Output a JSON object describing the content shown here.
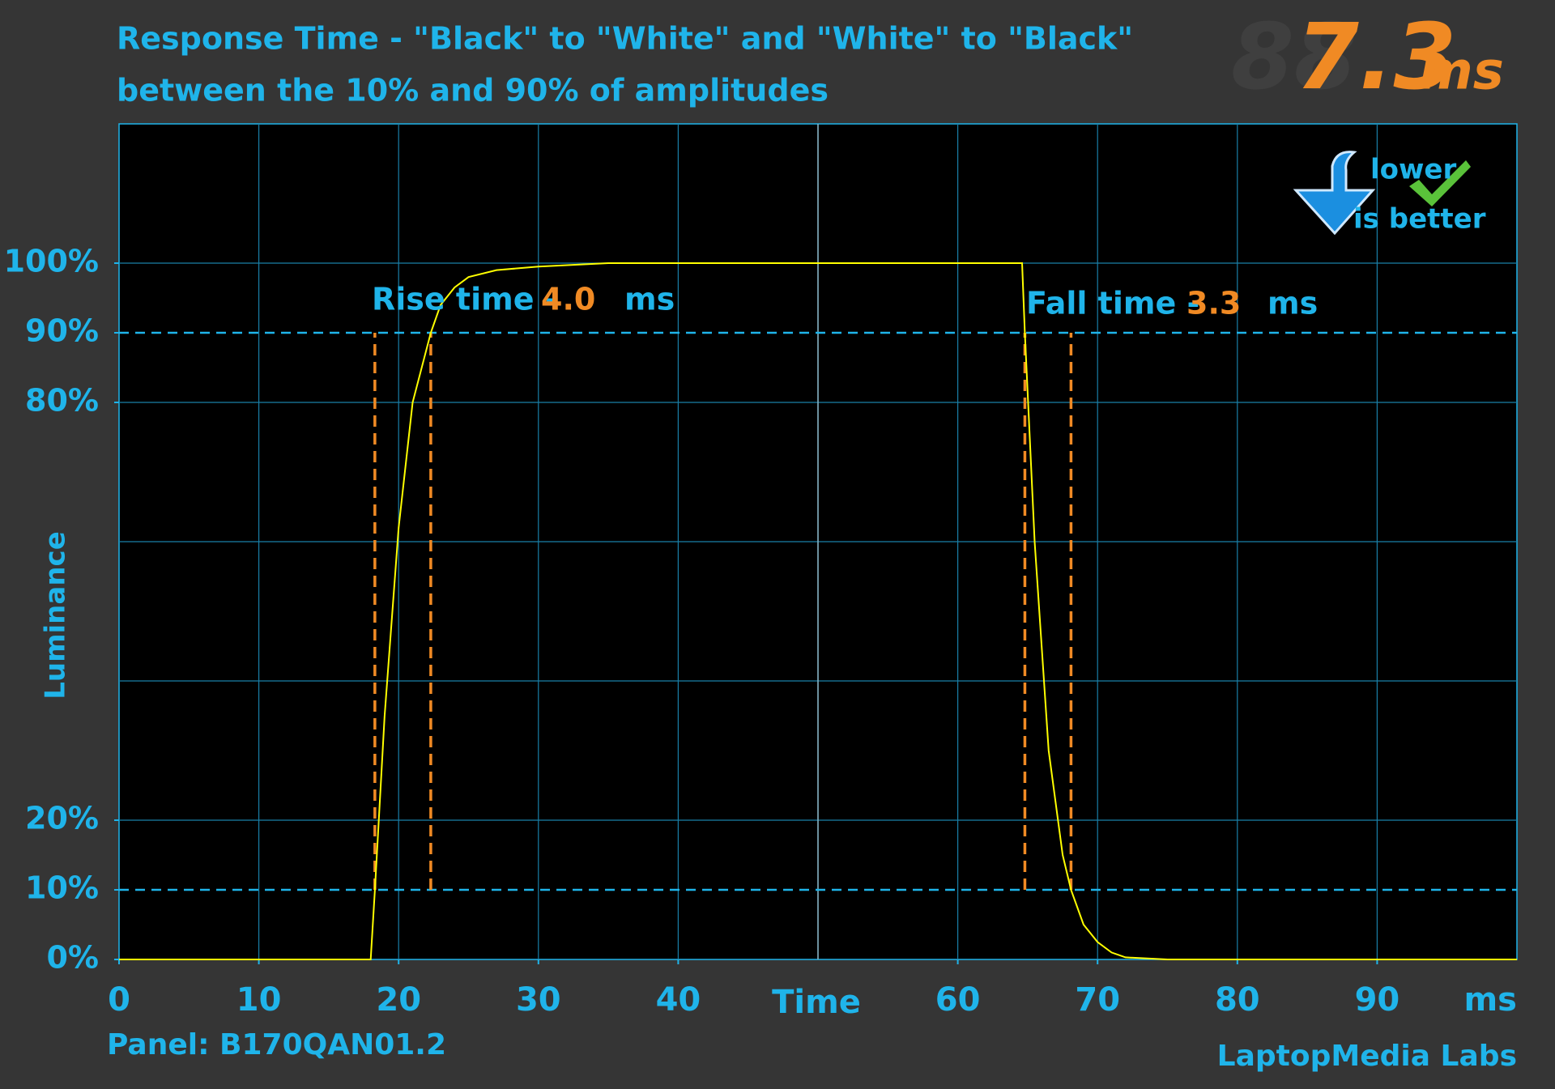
{
  "chart_data": {
    "type": "line",
    "title": "Response Time - \"Black\" to \"White\" and \"White\" to \"Black\"",
    "subtitle": "between the 10% and 90% of amplitudes",
    "total_response": "7.3",
    "total_unit": "ms",
    "x_label": "Time",
    "x_unit": "ms",
    "y_label": "Luminance",
    "note_left": "Panel: B170QAN01.2",
    "note_right": "LaptopMedia Labs",
    "badge_lines": [
      "lower",
      "is better"
    ],
    "rise_label": "Rise time - ",
    "rise_value": "4.0",
    "rise_unit": "ms",
    "fall_label": "Fall time - ",
    "fall_value": "3.3",
    "fall_unit": "ms",
    "xlim": [
      0,
      100
    ],
    "xticks": [
      0,
      10,
      20,
      30,
      40,
      60,
      70,
      80,
      90
    ],
    "ylim": [
      0,
      120
    ],
    "yticks": [
      {
        "value": 0,
        "label": "0%"
      },
      {
        "value": 10,
        "label": "10%"
      },
      {
        "value": 20,
        "label": "20%"
      },
      {
        "value": 80,
        "label": "80%"
      },
      {
        "value": 90,
        "label": "90%"
      },
      {
        "value": 100,
        "label": "100%"
      }
    ],
    "threshold_lines": [
      10,
      90
    ],
    "markers_x": [
      18.3,
      22.3,
      64.8,
      68.1
    ],
    "series": [
      {
        "name": "Luminance",
        "color": "#ffff00",
        "x": [
          0,
          18.0,
          18.3,
          19,
          20,
          21,
          22.3,
          23,
          24,
          25,
          27,
          30,
          35,
          64.6,
          64.8,
          65.5,
          66.5,
          67.5,
          68.1,
          69,
          70,
          71,
          72,
          75,
          100
        ],
        "values": [
          0,
          0,
          10,
          35,
          62,
          80,
          90,
          94,
          96.5,
          98,
          99,
          99.5,
          100,
          100,
          90,
          60,
          30,
          15,
          10,
          5,
          2.5,
          1,
          0.3,
          0,
          0
        ]
      }
    ]
  }
}
